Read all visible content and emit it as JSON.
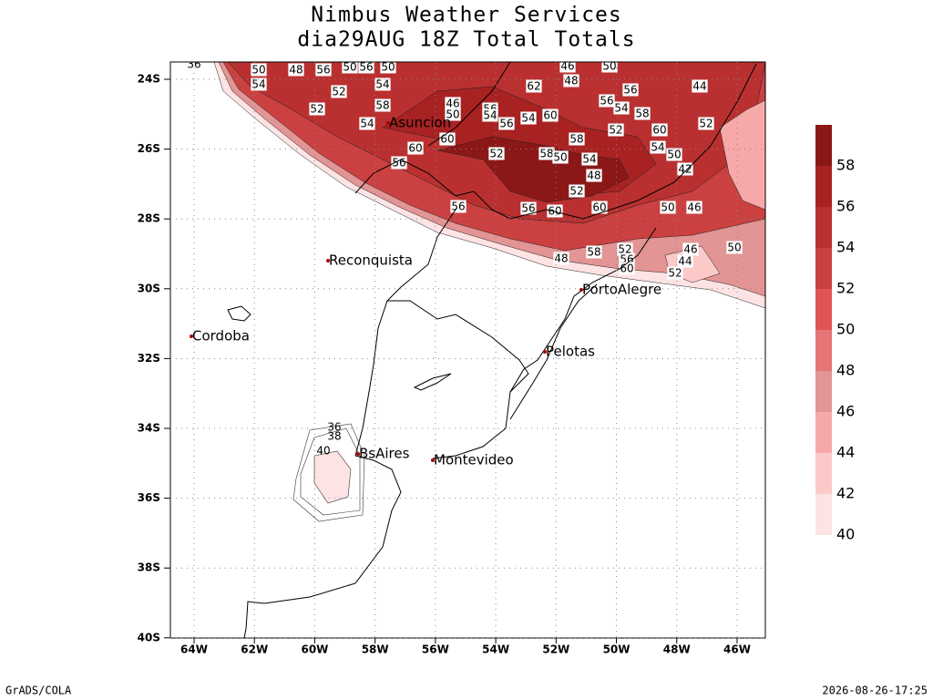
{
  "header": {
    "title": "Nimbus Weather Services",
    "subtitle": "dia29AUG 18Z Total Totals"
  },
  "map": {
    "lat_ticks": [
      "24S",
      "26S",
      "28S",
      "30S",
      "32S",
      "34S",
      "36S",
      "38S",
      "40S"
    ],
    "lon_ticks": [
      "64W",
      "62W",
      "60W",
      "58W",
      "56W",
      "54W",
      "52W",
      "50W",
      "48W",
      "46W"
    ],
    "cities": [
      "Asuncion",
      "Reconquista",
      "Cordoba",
      "BsAires",
      "Montevideo",
      "Pelotas",
      "PortoAlegre"
    ],
    "contour_labels": [
      "36",
      "50",
      "48",
      "56",
      "50",
      "56",
      "50",
      "54",
      "52",
      "54",
      "52",
      "54",
      "58",
      "60",
      "56",
      "46",
      "50",
      "56",
      "54",
      "60",
      "56",
      "52",
      "62",
      "54",
      "56",
      "56",
      "60",
      "60",
      "58",
      "50",
      "54",
      "48",
      "52",
      "60",
      "58",
      "56",
      "46",
      "48",
      "56",
      "50",
      "54",
      "52",
      "58",
      "60",
      "54",
      "52",
      "50",
      "44",
      "42",
      "46",
      "50",
      "52",
      "56",
      "60",
      "58",
      "48",
      "46",
      "44",
      "52",
      "50",
      "36",
      "38",
      "40"
    ]
  },
  "colorbar": {
    "labels": [
      40,
      42,
      44,
      46,
      48,
      50,
      52,
      54,
      56,
      58
    ],
    "colors": [
      "#fde3e3",
      "#fcc9c9",
      "#f7a9a9",
      "#e39494",
      "#e67474",
      "#e05454",
      "#cb4141",
      "#ba3030",
      "#a82222",
      "#8c1717"
    ]
  },
  "footer": {
    "left": "GrADS/COLA",
    "right": "2026-08-26-17:25"
  }
}
